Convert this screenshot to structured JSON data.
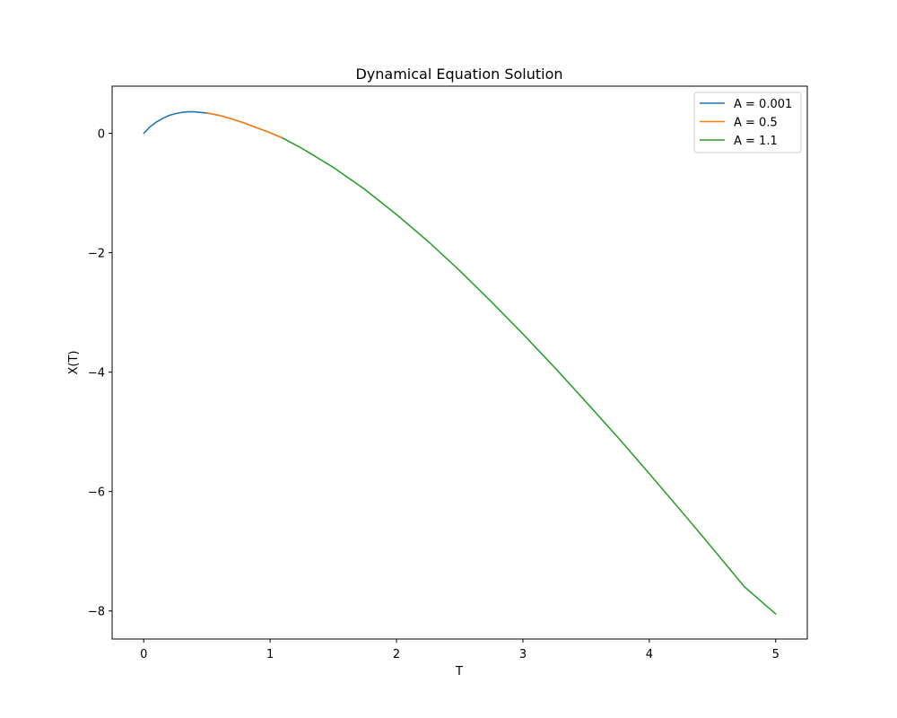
{
  "chart_data": {
    "type": "line",
    "title": "Dynamical Equation Solution",
    "xlabel": "T",
    "ylabel": "X(T)",
    "xlim": [
      -0.25,
      5.25
    ],
    "ylim": [
      -8.47,
      0.79
    ],
    "x_ticks": [
      0,
      1,
      2,
      3,
      4,
      5
    ],
    "x_tick_labels": [
      "0",
      "1",
      "2",
      "3",
      "4",
      "5"
    ],
    "y_ticks": [
      0,
      -2,
      -4,
      -6,
      -8
    ],
    "y_tick_labels": [
      "0",
      "−2",
      "−4",
      "−6",
      "−8"
    ],
    "grid": false,
    "legend_position": "top-right",
    "colors": {
      "series_1": "#1f77b4",
      "series_2": "#ff7f0e",
      "series_3": "#2ca02c"
    },
    "series": [
      {
        "name": "A = 0.001",
        "x": [
          0.001,
          0.05,
          0.1,
          0.15,
          0.2,
          0.25,
          0.3,
          0.35,
          0.4,
          0.45,
          0.5,
          0.6,
          0.7,
          0.8,
          0.9,
          1.0,
          1.1
        ],
        "y": [
          0.0,
          0.11,
          0.19,
          0.25,
          0.3,
          0.33,
          0.35,
          0.36,
          0.36,
          0.35,
          0.34,
          0.3,
          0.24,
          0.17,
          0.09,
          0.01,
          -0.08
        ]
      },
      {
        "name": "A = 0.5",
        "x": [
          0.5,
          0.6,
          0.7,
          0.8,
          0.9,
          1.0,
          1.1
        ],
        "y": [
          0.34,
          0.3,
          0.24,
          0.17,
          0.09,
          0.01,
          -0.08
        ]
      },
      {
        "name": "A = 1.1",
        "x": [
          1.1,
          1.25,
          1.5,
          1.75,
          2.0,
          2.25,
          2.5,
          2.75,
          3.0,
          3.25,
          3.5,
          3.75,
          4.0,
          4.25,
          4.5,
          4.75,
          5.0
        ],
        "y": [
          -0.08,
          -0.25,
          -0.57,
          -0.94,
          -1.36,
          -1.81,
          -2.3,
          -2.82,
          -3.36,
          -3.92,
          -4.5,
          -5.09,
          -5.7,
          -6.32,
          -6.95,
          -7.59,
          -8.05
        ]
      }
    ]
  }
}
